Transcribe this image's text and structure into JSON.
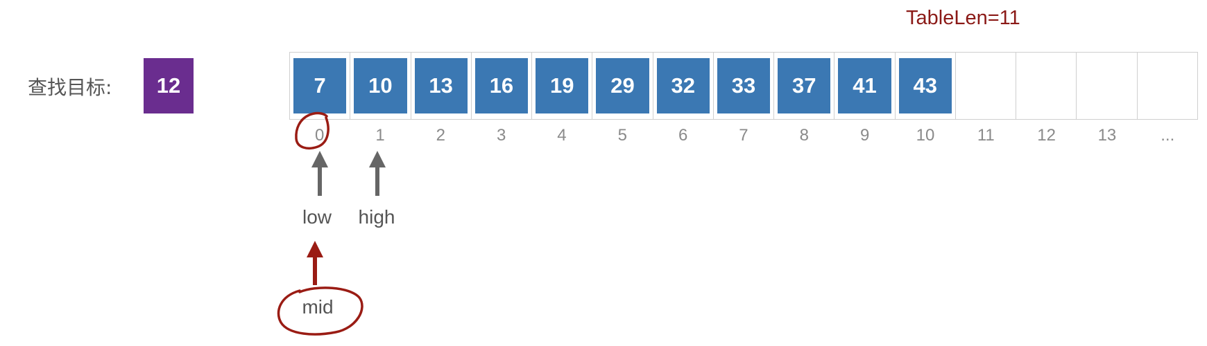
{
  "table_len_label": "TableLen=11",
  "target": {
    "label": "查找目标:",
    "value": "12"
  },
  "cells": [
    "7",
    "10",
    "13",
    "16",
    "19",
    "29",
    "32",
    "33",
    "37",
    "41",
    "43",
    "",
    "",
    "",
    ""
  ],
  "indices": [
    "0",
    "1",
    "2",
    "3",
    "4",
    "5",
    "6",
    "7",
    "8",
    "9",
    "10",
    "11",
    "12",
    "13",
    "..."
  ],
  "pointers": {
    "low": "low",
    "high": "high",
    "mid": "mid"
  },
  "colors": {
    "cell_fill": "#3b78b3",
    "target_fill": "#6a2d8f",
    "annotation": "#9a1c14",
    "arrow_gray": "#666666"
  }
}
